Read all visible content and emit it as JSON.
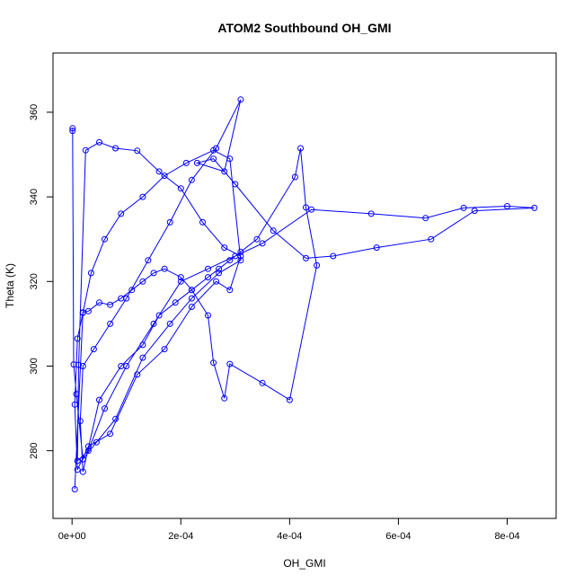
{
  "chart_data": {
    "type": "line",
    "title": "ATOM2 Southbound OH_GMI",
    "xlabel": "OH_GMI",
    "ylabel": "Theta (K)",
    "xlim": [
      -3.5e-05,
      0.00089
    ],
    "ylim": [
      264,
      374
    ],
    "x_ticks": [
      0,
      0.0002,
      0.0004,
      0.0006,
      0.0008
    ],
    "x_tick_labels": [
      "0e+00",
      "2e-04",
      "4e-04",
      "6e-04",
      "8e-04"
    ],
    "y_ticks": [
      280,
      300,
      320,
      340,
      360
    ],
    "y_tick_labels": [
      "280",
      "300",
      "320",
      "340",
      "360"
    ],
    "grid": false,
    "series_color": "#0000ff",
    "marker": "open-circle",
    "series": [
      {
        "x": [
          1e-06,
          1e-06,
          3e-06,
          8e-06,
          2e-05,
          4.5e-05,
          8e-05,
          0.00013,
          0.00018,
          0.00022,
          0.00027,
          0.00031,
          0.00029,
          0.00026,
          0.00021,
          0.00017,
          0.00013,
          9e-05,
          6e-05,
          3.5e-05,
          2e-05,
          1e-05,
          5e-06,
          1e-05,
          3e-05,
          7e-05,
          0.00012,
          0.00017,
          0.00022,
          0.000265,
          0.00029,
          0.00031,
          0.00028,
          0.00024,
          0.0002,
          0.00016,
          0.00012,
          8e-05,
          5e-05,
          2.5e-05,
          1.2e-05,
          1e-05,
          3e-05,
          6e-05,
          0.0001,
          0.00015,
          0.0002,
          0.00025,
          0.0003,
          0.00035,
          0.00044,
          0.00055,
          0.00065,
          0.00072,
          0.0008,
          0.00085,
          0.00074,
          0.00066,
          0.00056,
          0.00048,
          0.00043,
          0.00037,
          0.0003,
          0.00026,
          0.00023,
          0.00028,
          0.00031,
          0.000265,
          0.00022,
          0.00018,
          0.00014,
          0.0001,
          7e-05,
          4e-05,
          2e-05,
          1.5e-05,
          2e-05,
          5e-05,
          9e-05,
          0.00013,
          0.00016,
          0.00019,
          0.00022,
          0.00025,
          0.00027,
          0.00029,
          0.00031,
          0.00034,
          0.00041,
          0.00042,
          0.00043,
          0.00045,
          0.0004,
          0.00035,
          0.00029,
          0.00028,
          0.00026,
          0.00025,
          0.00022,
          0.0002,
          0.00017,
          0.00015,
          0.00013,
          0.00011,
          9e-05,
          7e-05,
          5e-05,
          3e-05,
          2e-05,
          5e-06
        ],
        "y": [
          356.2,
          355.6,
          300.4,
          293.4,
          278,
          282,
          287.5,
          302,
          310,
          316,
          322,
          325,
          349,
          351,
          348,
          345,
          340,
          336,
          330,
          322,
          312.6,
          306.5,
          290.9,
          275.5,
          281,
          284,
          298,
          304,
          314,
          320,
          318,
          326,
          328,
          334,
          342,
          346,
          350.9,
          351.5,
          352.9,
          351,
          300.3,
          277.6,
          280,
          290,
          300,
          310,
          320,
          323,
          326,
          329,
          337,
          336,
          335,
          337.4,
          337.8,
          337.4,
          336.7,
          330,
          328,
          326,
          325.5,
          332,
          343,
          349,
          348,
          346,
          363,
          351.5,
          344,
          334,
          325,
          316,
          310,
          304,
          300,
          287,
          275,
          292,
          300,
          305,
          312,
          315,
          318,
          321,
          323,
          325,
          327,
          330,
          344.7,
          351.5,
          337.5,
          323.8,
          292,
          296,
          300.5,
          292.4,
          300.8,
          312,
          318,
          321,
          323,
          322,
          320,
          318,
          316,
          314.5,
          315,
          313,
          312.7,
          270.9
        ]
      }
    ]
  }
}
